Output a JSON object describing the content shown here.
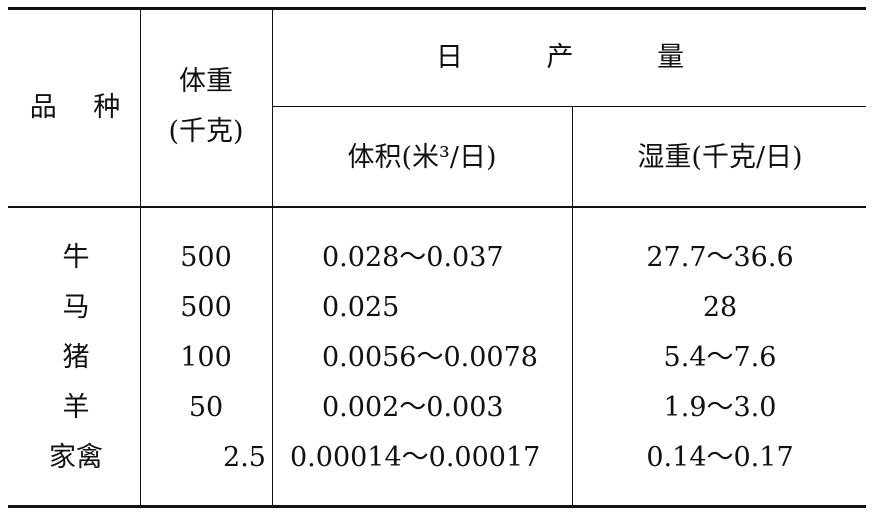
{
  "header": {
    "variety": "品 种",
    "weight": "体重",
    "weight_unit": "(千克)",
    "daily_output": "日 产 量",
    "volume": "体积(米³/日)",
    "wet_weight": "湿重(千克/日)"
  },
  "rows": [
    [
      "牛",
      "500",
      "0.028～0.037",
      "27.7～36.6"
    ],
    [
      "马",
      "500",
      "0.025",
      "28"
    ],
    [
      "猪",
      "100",
      "0.0056～0.0078",
      "5.4～7.6"
    ],
    [
      "羊",
      "50",
      "0.002～0.003",
      "1.9～3.0"
    ],
    [
      "家禽",
      "2.5",
      "0.00014～0.00017",
      "0.14～0.17"
    ]
  ]
}
